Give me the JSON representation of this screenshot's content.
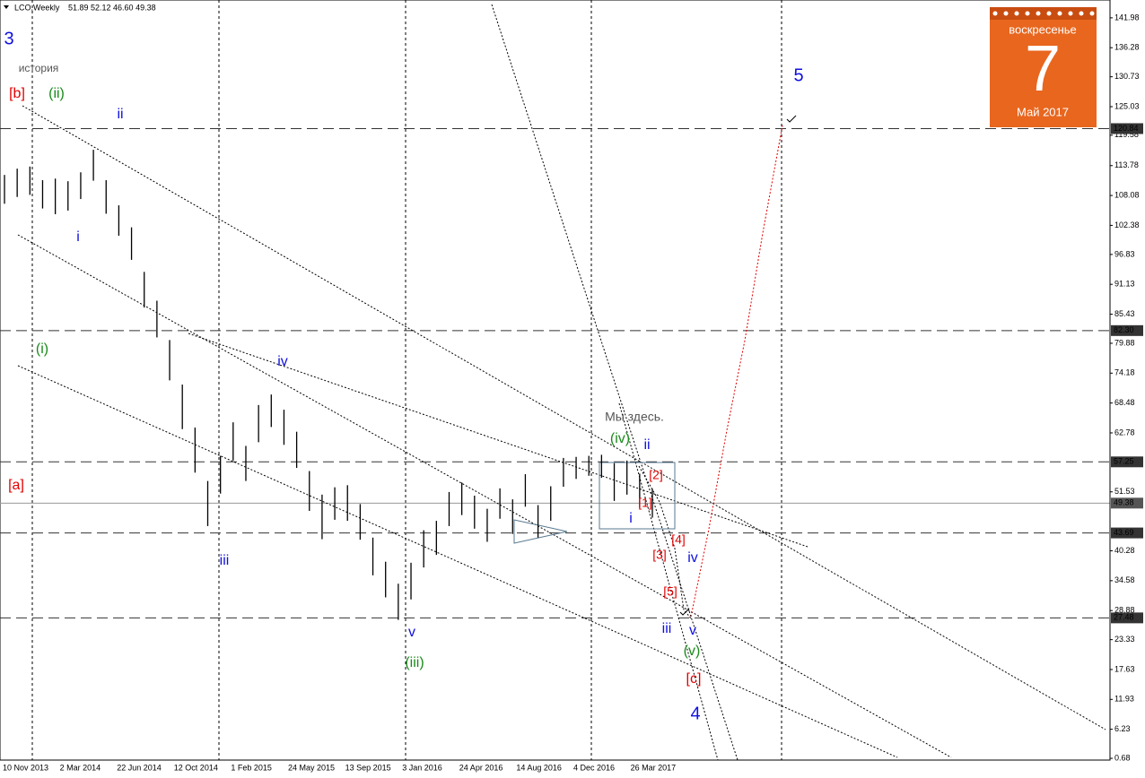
{
  "chart_data": {
    "type": "ohlc",
    "title": "LCO,Weekly",
    "quote": "51.89 52.12 46.60 49.38",
    "color": "#000000",
    "ylim": [
      0.35,
      145.38
    ],
    "yticks": [
      141.98,
      136.28,
      130.73,
      125.03,
      119.58,
      113.78,
      108.08,
      102.38,
      96.83,
      91.13,
      85.43,
      79.88,
      74.18,
      68.48,
      62.78,
      51.53,
      40.28,
      34.58,
      28.88,
      23.33,
      17.63,
      11.93,
      6.23,
      0.68
    ],
    "levels": [
      120.84,
      {
        "value": 82.3,
        "label": "82.30"
      },
      57.25,
      49.38,
      43.69,
      27.48
    ],
    "level_styles": [
      "dashed",
      "dashed",
      "dashed",
      "solid",
      "dashed",
      "dashed"
    ],
    "categories": [
      "10 Nov 2013",
      "2 Mar 2014",
      "22 Jun 2014",
      "12 Oct 2014",
      "1 Feb 2015",
      "24 May 2015",
      "13 Sep 2015",
      "3 Jan 2016",
      "24 Apr 2016",
      "14 Aug 2016",
      "4 Dec 2016",
      "26 Mar 2017"
    ],
    "highs": [
      112.0,
      113.2,
      113.6,
      111.0,
      111.3,
      110.8,
      112.5,
      116.8,
      111.0,
      106.2,
      102.0,
      93.5,
      88.0,
      80.5,
      72.0,
      63.8,
      53.6,
      58.4,
      64.8,
      60.3,
      68.1,
      70.1,
      67.2,
      63.0,
      55.5,
      51.0,
      52.4,
      52.8,
      49.2,
      42.8,
      38.2,
      34.0,
      38.0,
      44.2,
      46.0,
      51.5,
      53.3,
      50.8,
      48.3,
      52.2,
      50.1,
      54.9,
      49.0,
      52.6,
      58.0,
      58.2,
      58.4,
      58.6,
      57.0,
      57.5,
      55.0,
      52.12
    ],
    "lows": [
      106.5,
      107.8,
      108.2,
      105.6,
      104.5,
      105.2,
      107.4,
      110.9,
      104.6,
      100.4,
      95.8,
      86.7,
      81.0,
      72.8,
      63.5,
      55.2,
      45.0,
      51.2,
      57.5,
      53.6,
      61.0,
      63.9,
      60.5,
      56.1,
      47.9,
      42.5,
      46.2,
      46.0,
      42.4,
      35.6,
      31.4,
      27.1,
      31.0,
      37.1,
      39.5,
      45.0,
      47.1,
      44.5,
      42.0,
      46.4,
      43.5,
      48.7,
      42.8,
      46.0,
      52.5,
      54.0,
      54.6,
      54.2,
      49.8,
      51.0,
      48.5,
      46.6
    ],
    "annotations": [
      {
        "text": "3",
        "color": "#1010e0"
      },
      {
        "text": "история",
        "color": "#555555"
      },
      {
        "text": "[b]",
        "color": "#e00000"
      },
      {
        "text": "(ii)",
        "color": "#1a8a1a"
      },
      {
        "text": "ii",
        "color": "#1010e0"
      },
      {
        "text": "i",
        "color": "#1010e0"
      },
      {
        "text": "(i)",
        "color": "#1a8a1a"
      },
      {
        "text": "iv",
        "color": "#1010e0"
      },
      {
        "text": "[a]",
        "color": "#e00000"
      },
      {
        "text": "iii",
        "color": "#1010e0"
      },
      {
        "text": "v",
        "color": "#1010e0"
      },
      {
        "text": "(iii)",
        "color": "#1a8a1a"
      },
      {
        "text": "Мы здесь.",
        "color": "#555555"
      },
      {
        "text": "(iv)",
        "color": "#1a8a1a"
      },
      {
        "text": "ii",
        "color": "#1010e0"
      },
      {
        "text": "[2]",
        "color": "#e00000"
      },
      {
        "text": "[1]",
        "color": "#e00000"
      },
      {
        "text": "i",
        "color": "#1010e0"
      },
      {
        "text": "[4]",
        "color": "#e00000"
      },
      {
        "text": "[3]",
        "color": "#e00000"
      },
      {
        "text": "iv",
        "color": "#1010e0"
      },
      {
        "text": "[5]",
        "color": "#e00000"
      },
      {
        "text": "iii",
        "color": "#1010e0"
      },
      {
        "text": "v",
        "color": "#1010e0"
      },
      {
        "text": "(v)",
        "color": "#1a8a1a"
      },
      {
        "text": "[c]",
        "color": "#e00000"
      },
      {
        "text": "4",
        "color": "#1010e0"
      },
      {
        "text": "5",
        "color": "#1010e0"
      }
    ],
    "calendar": {
      "weekday": "воскресенье",
      "day": "7",
      "month": "Май 2017"
    }
  }
}
